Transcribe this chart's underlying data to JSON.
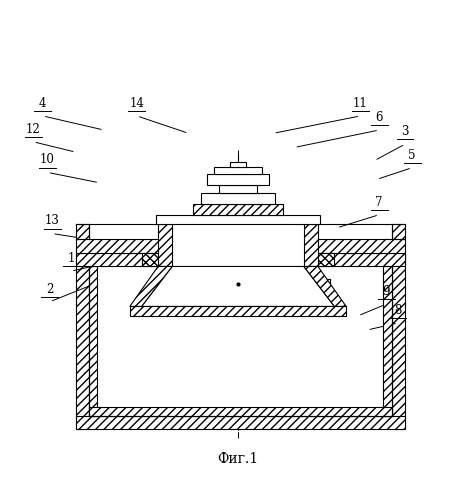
{
  "title": "Фиг.1",
  "bg_color": "#ffffff",
  "line_color": "#000000",
  "label_color": "#000000",
  "label_positions": {
    "4": [
      0.085,
      0.785,
      0.215,
      0.755
    ],
    "14": [
      0.285,
      0.785,
      0.395,
      0.748
    ],
    "11": [
      0.76,
      0.785,
      0.575,
      0.748
    ],
    "6": [
      0.8,
      0.755,
      0.62,
      0.718
    ],
    "3": [
      0.855,
      0.725,
      0.79,
      0.69
    ],
    "12": [
      0.065,
      0.73,
      0.155,
      0.708
    ],
    "10": [
      0.095,
      0.665,
      0.205,
      0.643
    ],
    "5": [
      0.87,
      0.675,
      0.795,
      0.65
    ],
    "7": [
      0.8,
      0.575,
      0.71,
      0.547
    ],
    "13": [
      0.105,
      0.535,
      0.265,
      0.51
    ],
    "1": [
      0.145,
      0.455,
      0.265,
      0.482
    ],
    "2": [
      0.1,
      0.39,
      0.2,
      0.43
    ],
    "9": [
      0.815,
      0.385,
      0.755,
      0.36
    ],
    "8": [
      0.84,
      0.345,
      0.775,
      0.33
    ]
  }
}
